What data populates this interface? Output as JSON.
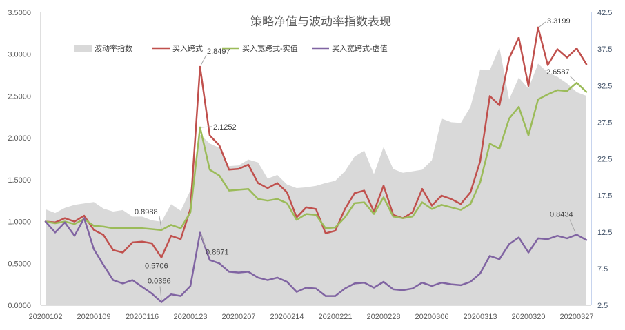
{
  "chart_data": {
    "type": "line",
    "title": "策略净值与波动率指数表现",
    "xlabel": "",
    "ylabel": "",
    "y2label": "",
    "ylim": [
      0,
      3.5
    ],
    "y2lim": [
      2.5,
      42.5
    ],
    "grid": false,
    "legend_position": "top-left",
    "y_ticks": [
      "0.0000",
      "0.5000",
      "1.0000",
      "1.5000",
      "2.0000",
      "2.5000",
      "3.0000",
      "3.5000"
    ],
    "y2_ticks": [
      "2.5",
      "7.5",
      "12.5",
      "17.5",
      "22.5",
      "27.5",
      "32.5",
      "37.5",
      "42.5"
    ],
    "x_ticks": [
      {
        "index": 0,
        "label": "20200102"
      },
      {
        "index": 5,
        "label": "20200109"
      },
      {
        "index": 10,
        "label": "20200116"
      },
      {
        "index": 15,
        "label": "20200123"
      },
      {
        "index": 20,
        "label": "20200207"
      },
      {
        "index": 25,
        "label": "20200214"
      },
      {
        "index": 30,
        "label": "20200221"
      },
      {
        "index": 35,
        "label": "20200228"
      },
      {
        "index": 40,
        "label": "20200306"
      },
      {
        "index": 45,
        "label": "20200313"
      },
      {
        "index": 50,
        "label": "20200320"
      },
      {
        "index": 55,
        "label": "20200327"
      }
    ],
    "series": [
      {
        "name": "波动率指数",
        "type": "area",
        "axis": "right",
        "color": "#d9d9d9",
        "values": [
          15.6,
          15.1,
          15.8,
          16.2,
          16.4,
          16.6,
          15.7,
          15.3,
          15.5,
          14.6,
          14.6,
          14.1,
          13.9,
          16.3,
          15.4,
          18.2,
          25.8,
          24.6,
          24.0,
          21.5,
          21.6,
          22.4,
          22.0,
          19.8,
          20.3,
          19.0,
          18.5,
          18.6,
          18.8,
          19.2,
          19.5,
          20.8,
          22.8,
          23.6,
          20.4,
          24.1,
          21.1,
          20.6,
          20.8,
          21.0,
          22.3,
          28.0,
          27.5,
          27.4,
          29.6,
          34.7,
          34.6,
          37.7,
          30.6,
          33.6,
          32.1,
          35.5,
          34.3,
          33.7,
          32.8,
          31.6,
          31.1
        ]
      },
      {
        "name": "买入跨式",
        "type": "line",
        "axis": "left",
        "color": "#c0504d",
        "values": [
          1.0,
          0.99,
          1.04,
          1.0,
          1.07,
          0.9,
          0.84,
          0.66,
          0.63,
          0.75,
          0.76,
          0.74,
          0.5706,
          0.83,
          0.79,
          1.15,
          2.8497,
          2.03,
          1.91,
          1.62,
          1.63,
          1.68,
          1.46,
          1.4,
          1.46,
          1.35,
          1.05,
          1.17,
          1.15,
          0.86,
          0.89,
          1.15,
          1.34,
          1.37,
          1.12,
          1.43,
          1.08,
          1.04,
          1.11,
          1.39,
          1.19,
          1.31,
          1.27,
          1.21,
          1.35,
          1.72,
          2.5,
          2.39,
          2.95,
          3.2,
          2.62,
          3.3199,
          2.87,
          3.06,
          2.96,
          3.07,
          2.88
        ]
      },
      {
        "name": "买入宽跨式-实值",
        "type": "line",
        "axis": "left",
        "color": "#9bbb59",
        "values": [
          1.0,
          0.98,
          1.0,
          0.97,
          1.03,
          0.95,
          0.94,
          0.92,
          0.92,
          0.92,
          0.92,
          0.91,
          0.8988,
          0.96,
          0.92,
          1.11,
          2.1252,
          1.62,
          1.55,
          1.37,
          1.38,
          1.39,
          1.27,
          1.25,
          1.27,
          1.22,
          1.02,
          1.09,
          1.08,
          0.92,
          0.93,
          1.05,
          1.22,
          1.23,
          1.09,
          1.29,
          1.06,
          1.04,
          1.06,
          1.23,
          1.15,
          1.2,
          1.17,
          1.14,
          1.21,
          1.47,
          1.93,
          1.87,
          2.23,
          2.37,
          2.03,
          2.46,
          2.52,
          2.57,
          2.56,
          2.6587,
          2.55
        ]
      },
      {
        "name": "买入宽跨式-虚值",
        "type": "line",
        "axis": "left",
        "color": "#8064a2",
        "values": [
          1.0,
          0.87,
          0.99,
          0.83,
          1.04,
          0.67,
          0.48,
          0.3,
          0.26,
          0.3,
          0.22,
          0.14,
          0.0366,
          0.13,
          0.11,
          0.23,
          0.8671,
          0.54,
          0.5,
          0.4,
          0.39,
          0.4,
          0.33,
          0.3,
          0.33,
          0.28,
          0.16,
          0.21,
          0.2,
          0.11,
          0.11,
          0.2,
          0.26,
          0.27,
          0.21,
          0.28,
          0.19,
          0.18,
          0.2,
          0.27,
          0.23,
          0.27,
          0.25,
          0.24,
          0.28,
          0.38,
          0.59,
          0.55,
          0.73,
          0.81,
          0.63,
          0.8,
          0.79,
          0.83,
          0.8,
          0.8434,
          0.78
        ]
      }
    ],
    "annotations": [
      {
        "series": 1,
        "index": 16,
        "text": "2.8497"
      },
      {
        "series": 2,
        "index": 16,
        "text": "2.1252"
      },
      {
        "series": 2,
        "index": 12,
        "text": "0.8988"
      },
      {
        "series": 1,
        "index": 12,
        "text": "0.5706"
      },
      {
        "series": 3,
        "index": 12,
        "text": "0.0366"
      },
      {
        "series": 3,
        "index": 16,
        "text": "0.8671"
      },
      {
        "series": 1,
        "index": 51,
        "text": "3.3199"
      },
      {
        "series": 2,
        "index": 55,
        "text": "2.6587"
      },
      {
        "series": 3,
        "index": 55,
        "text": "0.8434"
      }
    ]
  }
}
